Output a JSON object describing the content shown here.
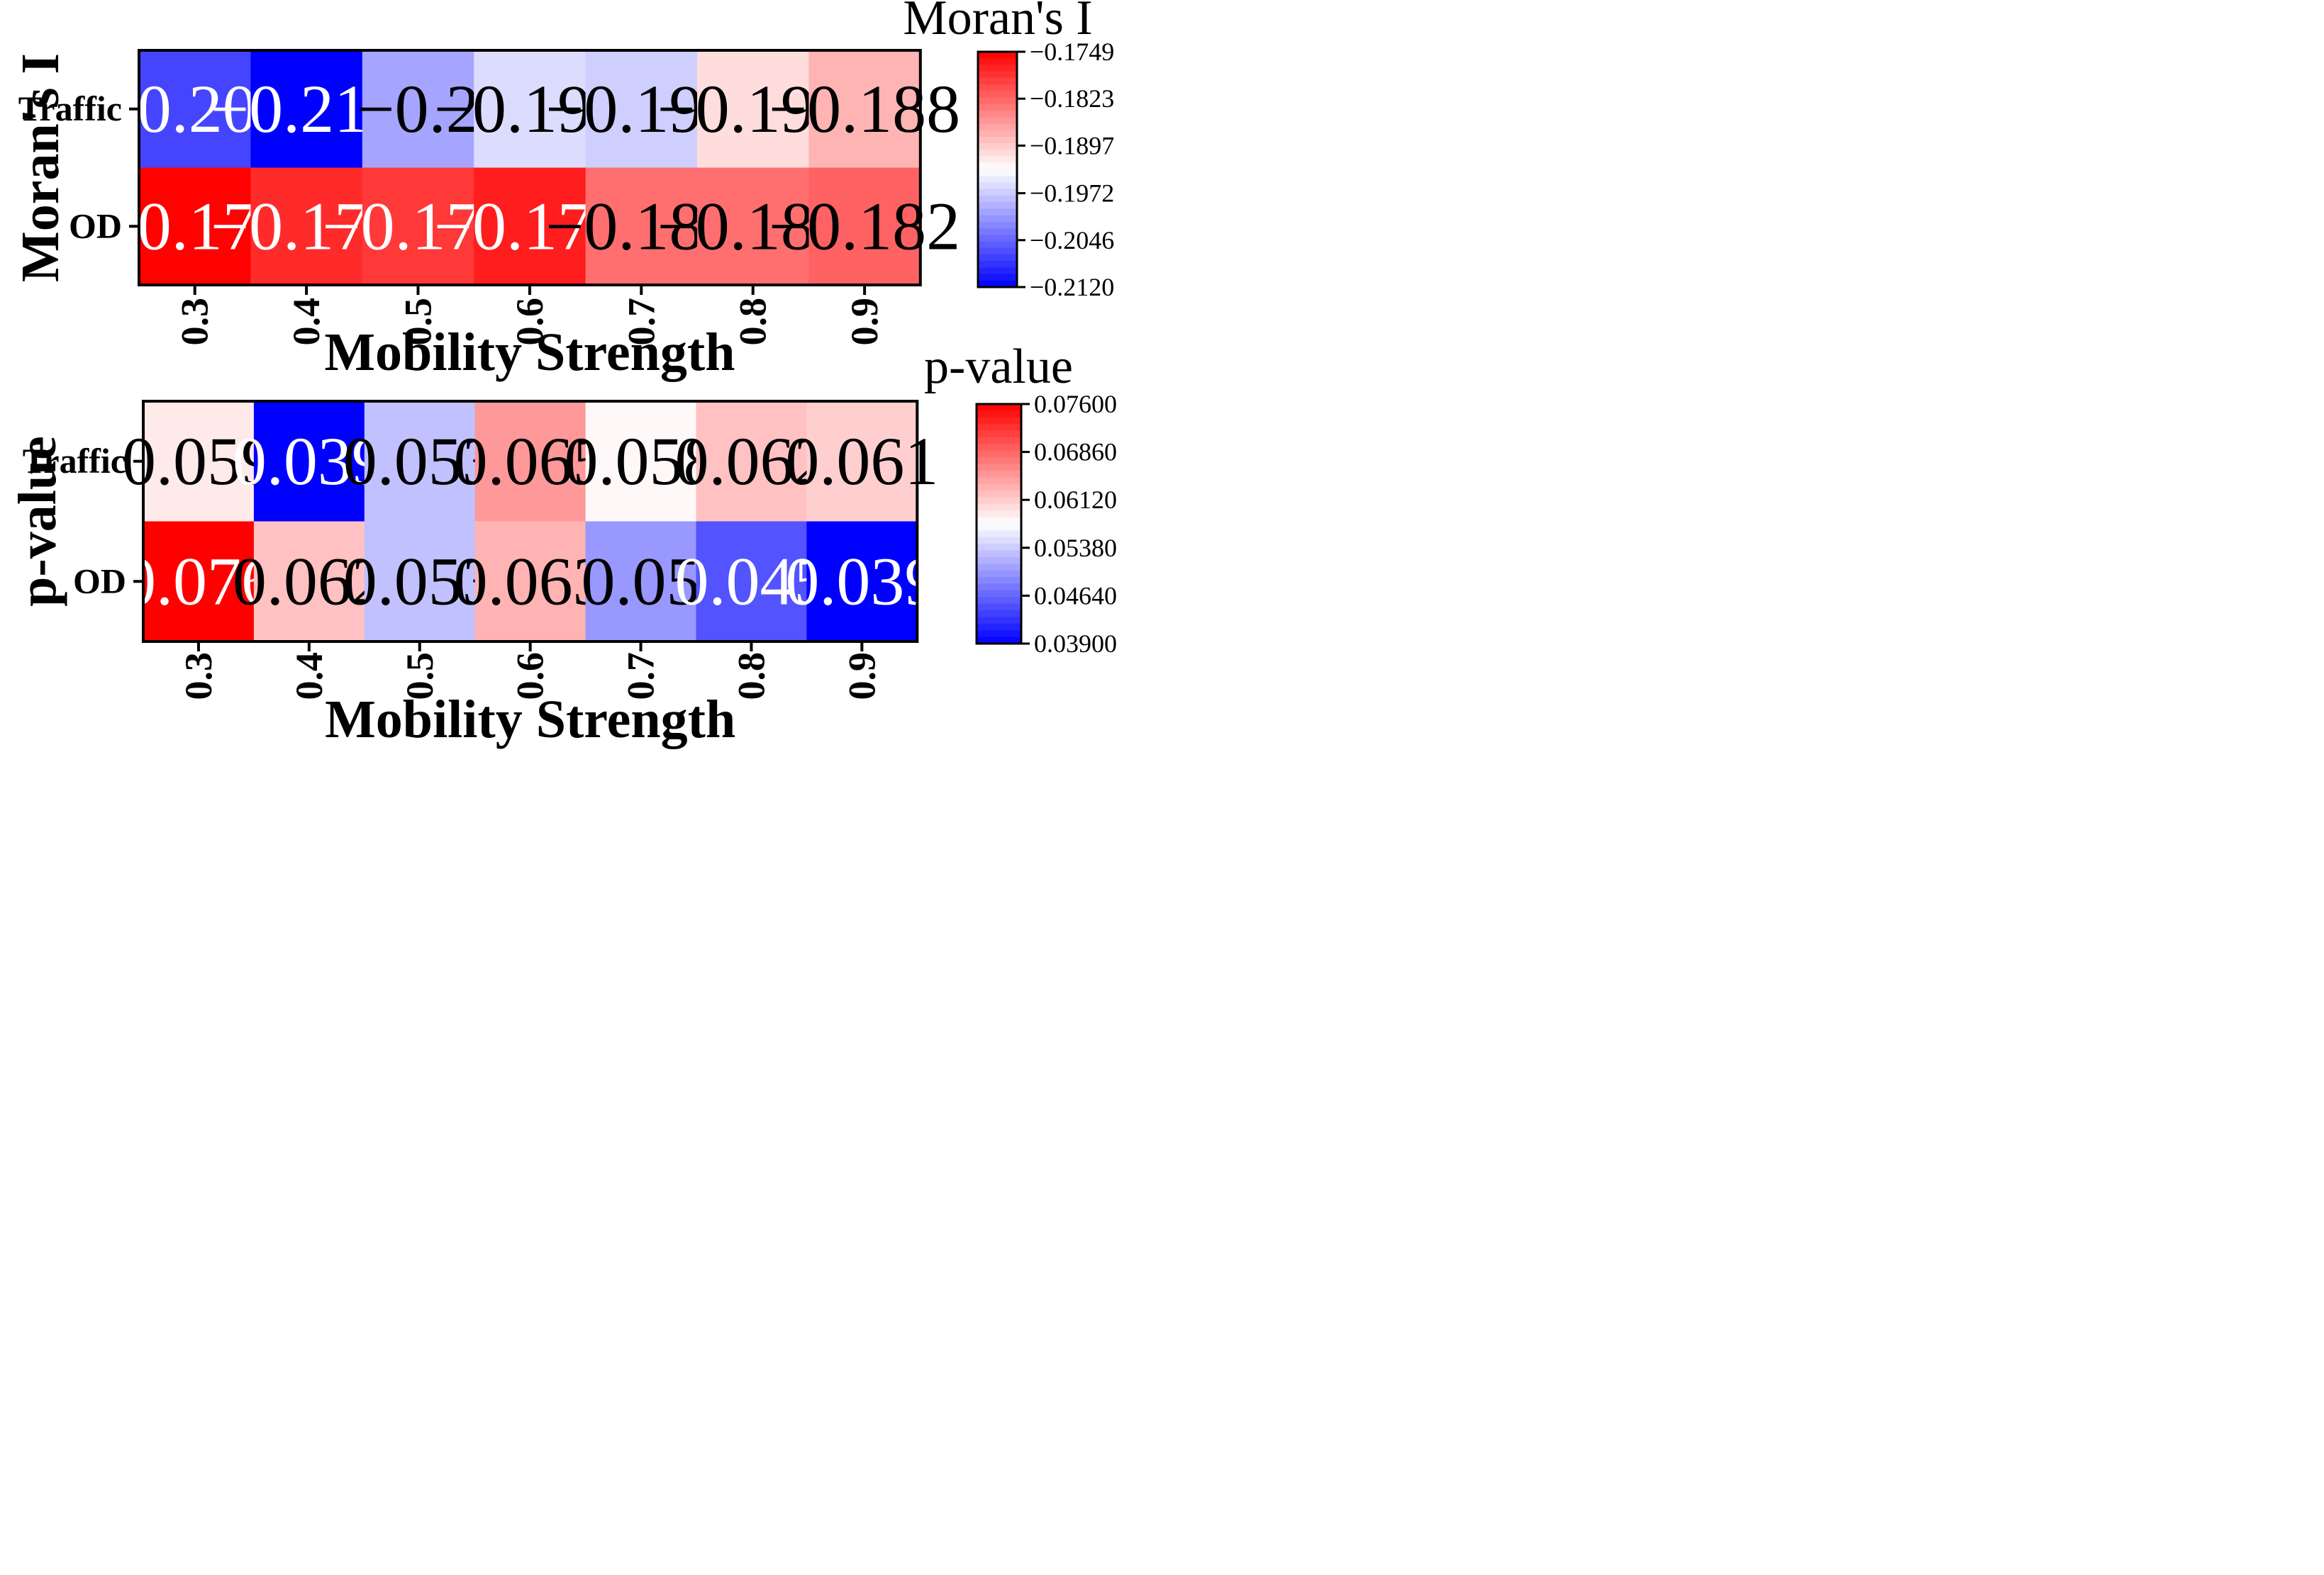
{
  "chart_data": [
    {
      "type": "heatmap",
      "metric": "Moran's I",
      "ylabel": "Moran's I",
      "xlabel": "Mobility Strength",
      "categories": [
        "0.3",
        "0.4",
        "0.5",
        "0.6",
        "0.7",
        "0.8",
        "0.9"
      ],
      "rows": [
        "Traffic",
        "OD"
      ],
      "values": [
        [
          -0.207,
          -0.212,
          -0.2,
          -0.196,
          -0.197,
          -0.191,
          -0.188
        ],
        [
          -0.175,
          -0.178,
          -0.179,
          -0.177,
          -0.183,
          -0.183,
          -0.182
        ]
      ],
      "labels": [
        [
          "−0.207",
          "−0.212",
          "−0.2",
          "−0.196",
          "−0.197",
          "−0.191",
          "−0.188"
        ],
        [
          "−0.175",
          "−0.178",
          "−0.179",
          "−0.177",
          "−0.183",
          "−0.183",
          "−0.182"
        ]
      ],
      "colorbar": {
        "title": "Moran's I",
        "vmin": -0.212,
        "vmax": -0.1749,
        "ticks": [
          -0.1749,
          -0.1823,
          -0.1897,
          -0.1972,
          -0.2046,
          -0.212
        ],
        "tick_labels": [
          "−0.1749",
          "−0.1823",
          "−0.1897",
          "−0.1972",
          "−0.2046",
          "−0.2120"
        ],
        "cmap": "bwr"
      }
    },
    {
      "type": "heatmap",
      "metric": "p-value",
      "ylabel": "p-value",
      "xlabel": "Mobility Strength",
      "categories": [
        "0.3",
        "0.4",
        "0.5",
        "0.6",
        "0.7",
        "0.8",
        "0.9"
      ],
      "rows": [
        "Traffic",
        "OD"
      ],
      "values": [
        [
          0.059,
          0.039,
          0.053,
          0.065,
          0.058,
          0.062,
          0.061
        ],
        [
          0.076,
          0.062,
          0.053,
          0.063,
          0.05,
          0.045,
          0.039
        ]
      ],
      "labels": [
        [
          "0.059",
          "0.039",
          "0.053",
          "0.065",
          "0.058",
          "0.062",
          "0.061"
        ],
        [
          "0.076",
          "0.062",
          "0.053",
          "0.063",
          "0.05",
          "0.045",
          "0.039"
        ]
      ],
      "colorbar": {
        "title": "p-value",
        "vmin": 0.039,
        "vmax": 0.076,
        "ticks": [
          0.076,
          0.0686,
          0.0612,
          0.0538,
          0.0464,
          0.039
        ],
        "tick_labels": [
          "0.07600",
          "0.06860",
          "0.06120",
          "0.05380",
          "0.04640",
          "0.03900"
        ],
        "cmap": "bwr"
      }
    }
  ],
  "colors": {
    "low": "#0000ff",
    "mid": "#ffffff",
    "high": "#ff0000"
  }
}
